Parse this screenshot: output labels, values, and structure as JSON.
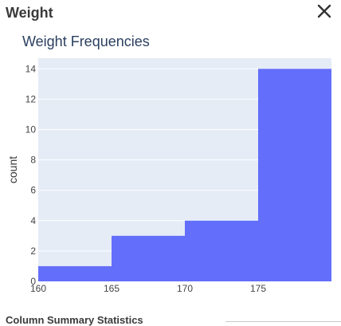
{
  "panel": {
    "title": "Weight",
    "close_icon": "close-icon"
  },
  "summary": {
    "heading": "Column Summary Statistics"
  },
  "colors": {
    "bar": "#636efa",
    "plot_bg": "#e5ecf6",
    "grid": "#ffffff",
    "title": "#2a3f5f"
  },
  "chart_data": {
    "type": "bar",
    "title": "Weight Frequencies",
    "xlabel": "",
    "ylabel": "count",
    "bins": [
      {
        "start": 160,
        "end": 165,
        "count": 1
      },
      {
        "start": 165,
        "end": 170,
        "count": 3
      },
      {
        "start": 170,
        "end": 175,
        "count": 4
      },
      {
        "start": 175,
        "end": 180,
        "count": 14
      }
    ],
    "xlim": [
      160,
      180
    ],
    "ylim": [
      0,
      14.7
    ],
    "xticks": [
      160,
      165,
      170,
      175
    ],
    "yticks": [
      0,
      2,
      4,
      6,
      8,
      10,
      12,
      14
    ],
    "grid": true
  }
}
